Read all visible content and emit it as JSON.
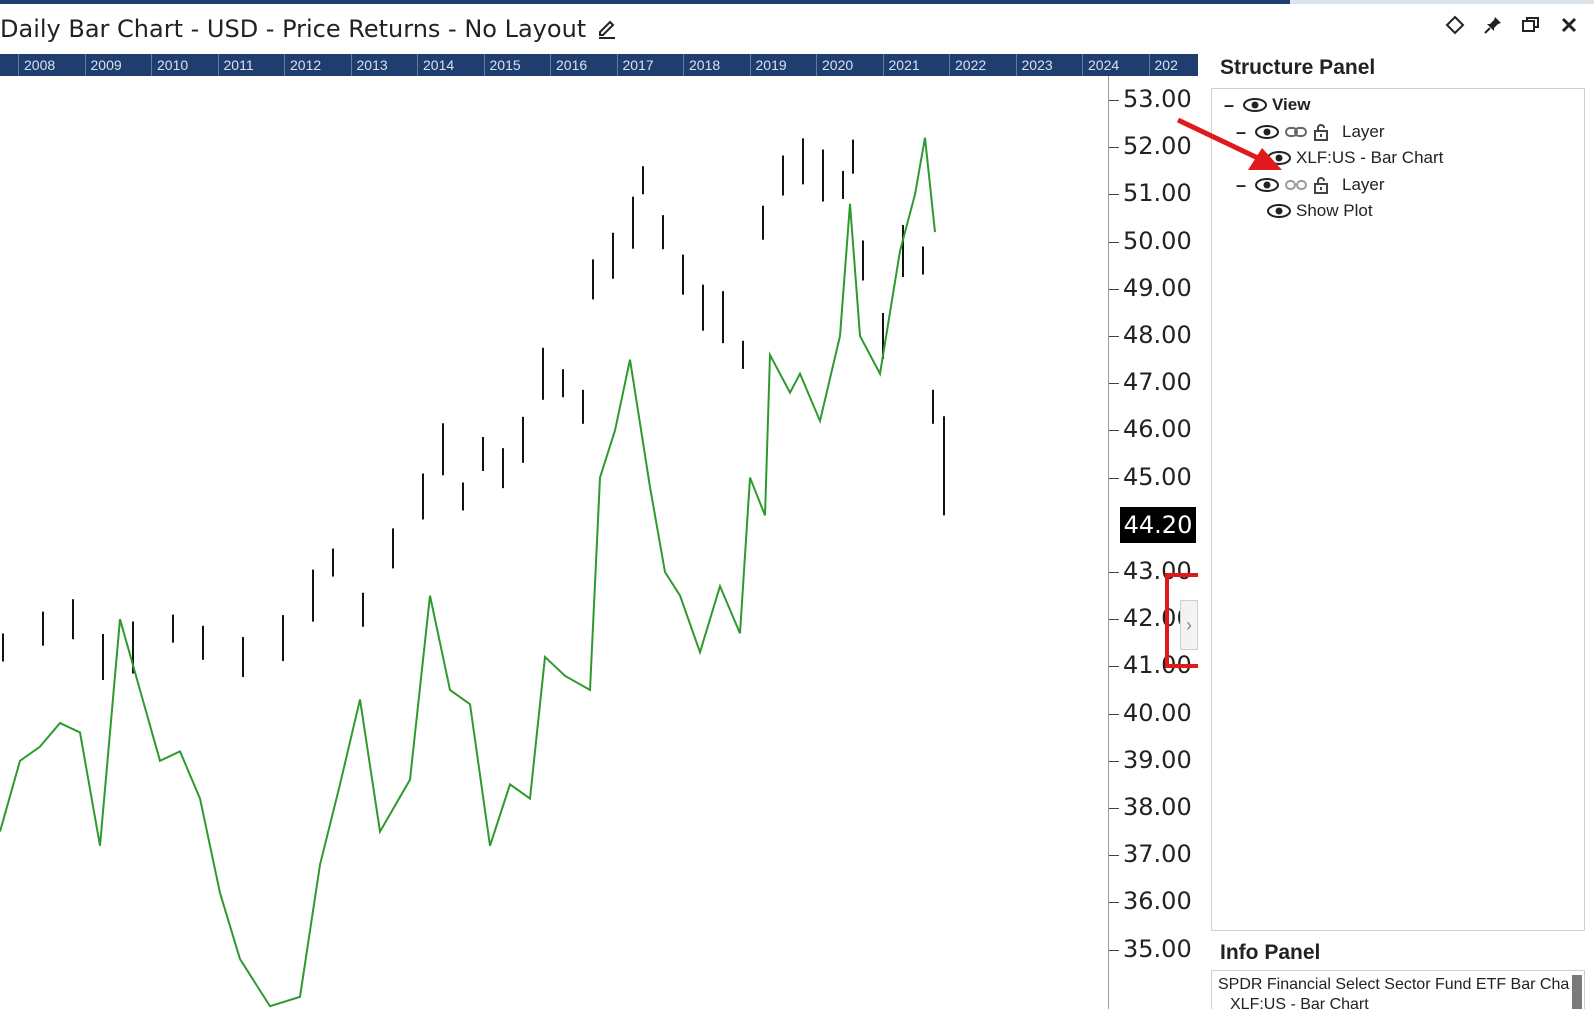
{
  "title_bar": {
    "title": "Daily Bar Chart - USD - Price Returns - No Layout"
  },
  "window_controls": [
    "diamond-icon",
    "pin-icon",
    "restore-icon",
    "close-icon"
  ],
  "timeline": {
    "years": [
      "2008",
      "2009",
      "2010",
      "2011",
      "2012",
      "2013",
      "2014",
      "2015",
      "2016",
      "2017",
      "2018",
      "2019",
      "2020",
      "2021",
      "2022",
      "2023",
      "2024",
      "202"
    ]
  },
  "y_axis": {
    "labels": [
      "53.00",
      "52.00",
      "51.00",
      "50.00",
      "49.00",
      "48.00",
      "47.00",
      "46.00",
      "45.00",
      "43.00",
      "42.00",
      "41.00",
      "40.00",
      "39.00",
      "38.00",
      "37.00",
      "36.00",
      "35.00"
    ],
    "current_price": "44.20"
  },
  "structure_panel": {
    "title": "Structure Panel",
    "items": [
      {
        "label": "View",
        "bold": true
      },
      {
        "label": "Layer"
      },
      {
        "label": "XLF:US - Bar Chart"
      },
      {
        "label": "Layer"
      },
      {
        "label": "Show Plot"
      }
    ]
  },
  "info_panel": {
    "title": "Info Panel",
    "line1": "SPDR Financial Select Sector Fund ETF Bar Cha",
    "line2": "XLF:US - Bar Chart"
  },
  "colors": {
    "accent": "#1f3d6e",
    "bar_series": "#111111",
    "line_series": "#2e9a2e",
    "highlight": "#e0191c"
  }
}
